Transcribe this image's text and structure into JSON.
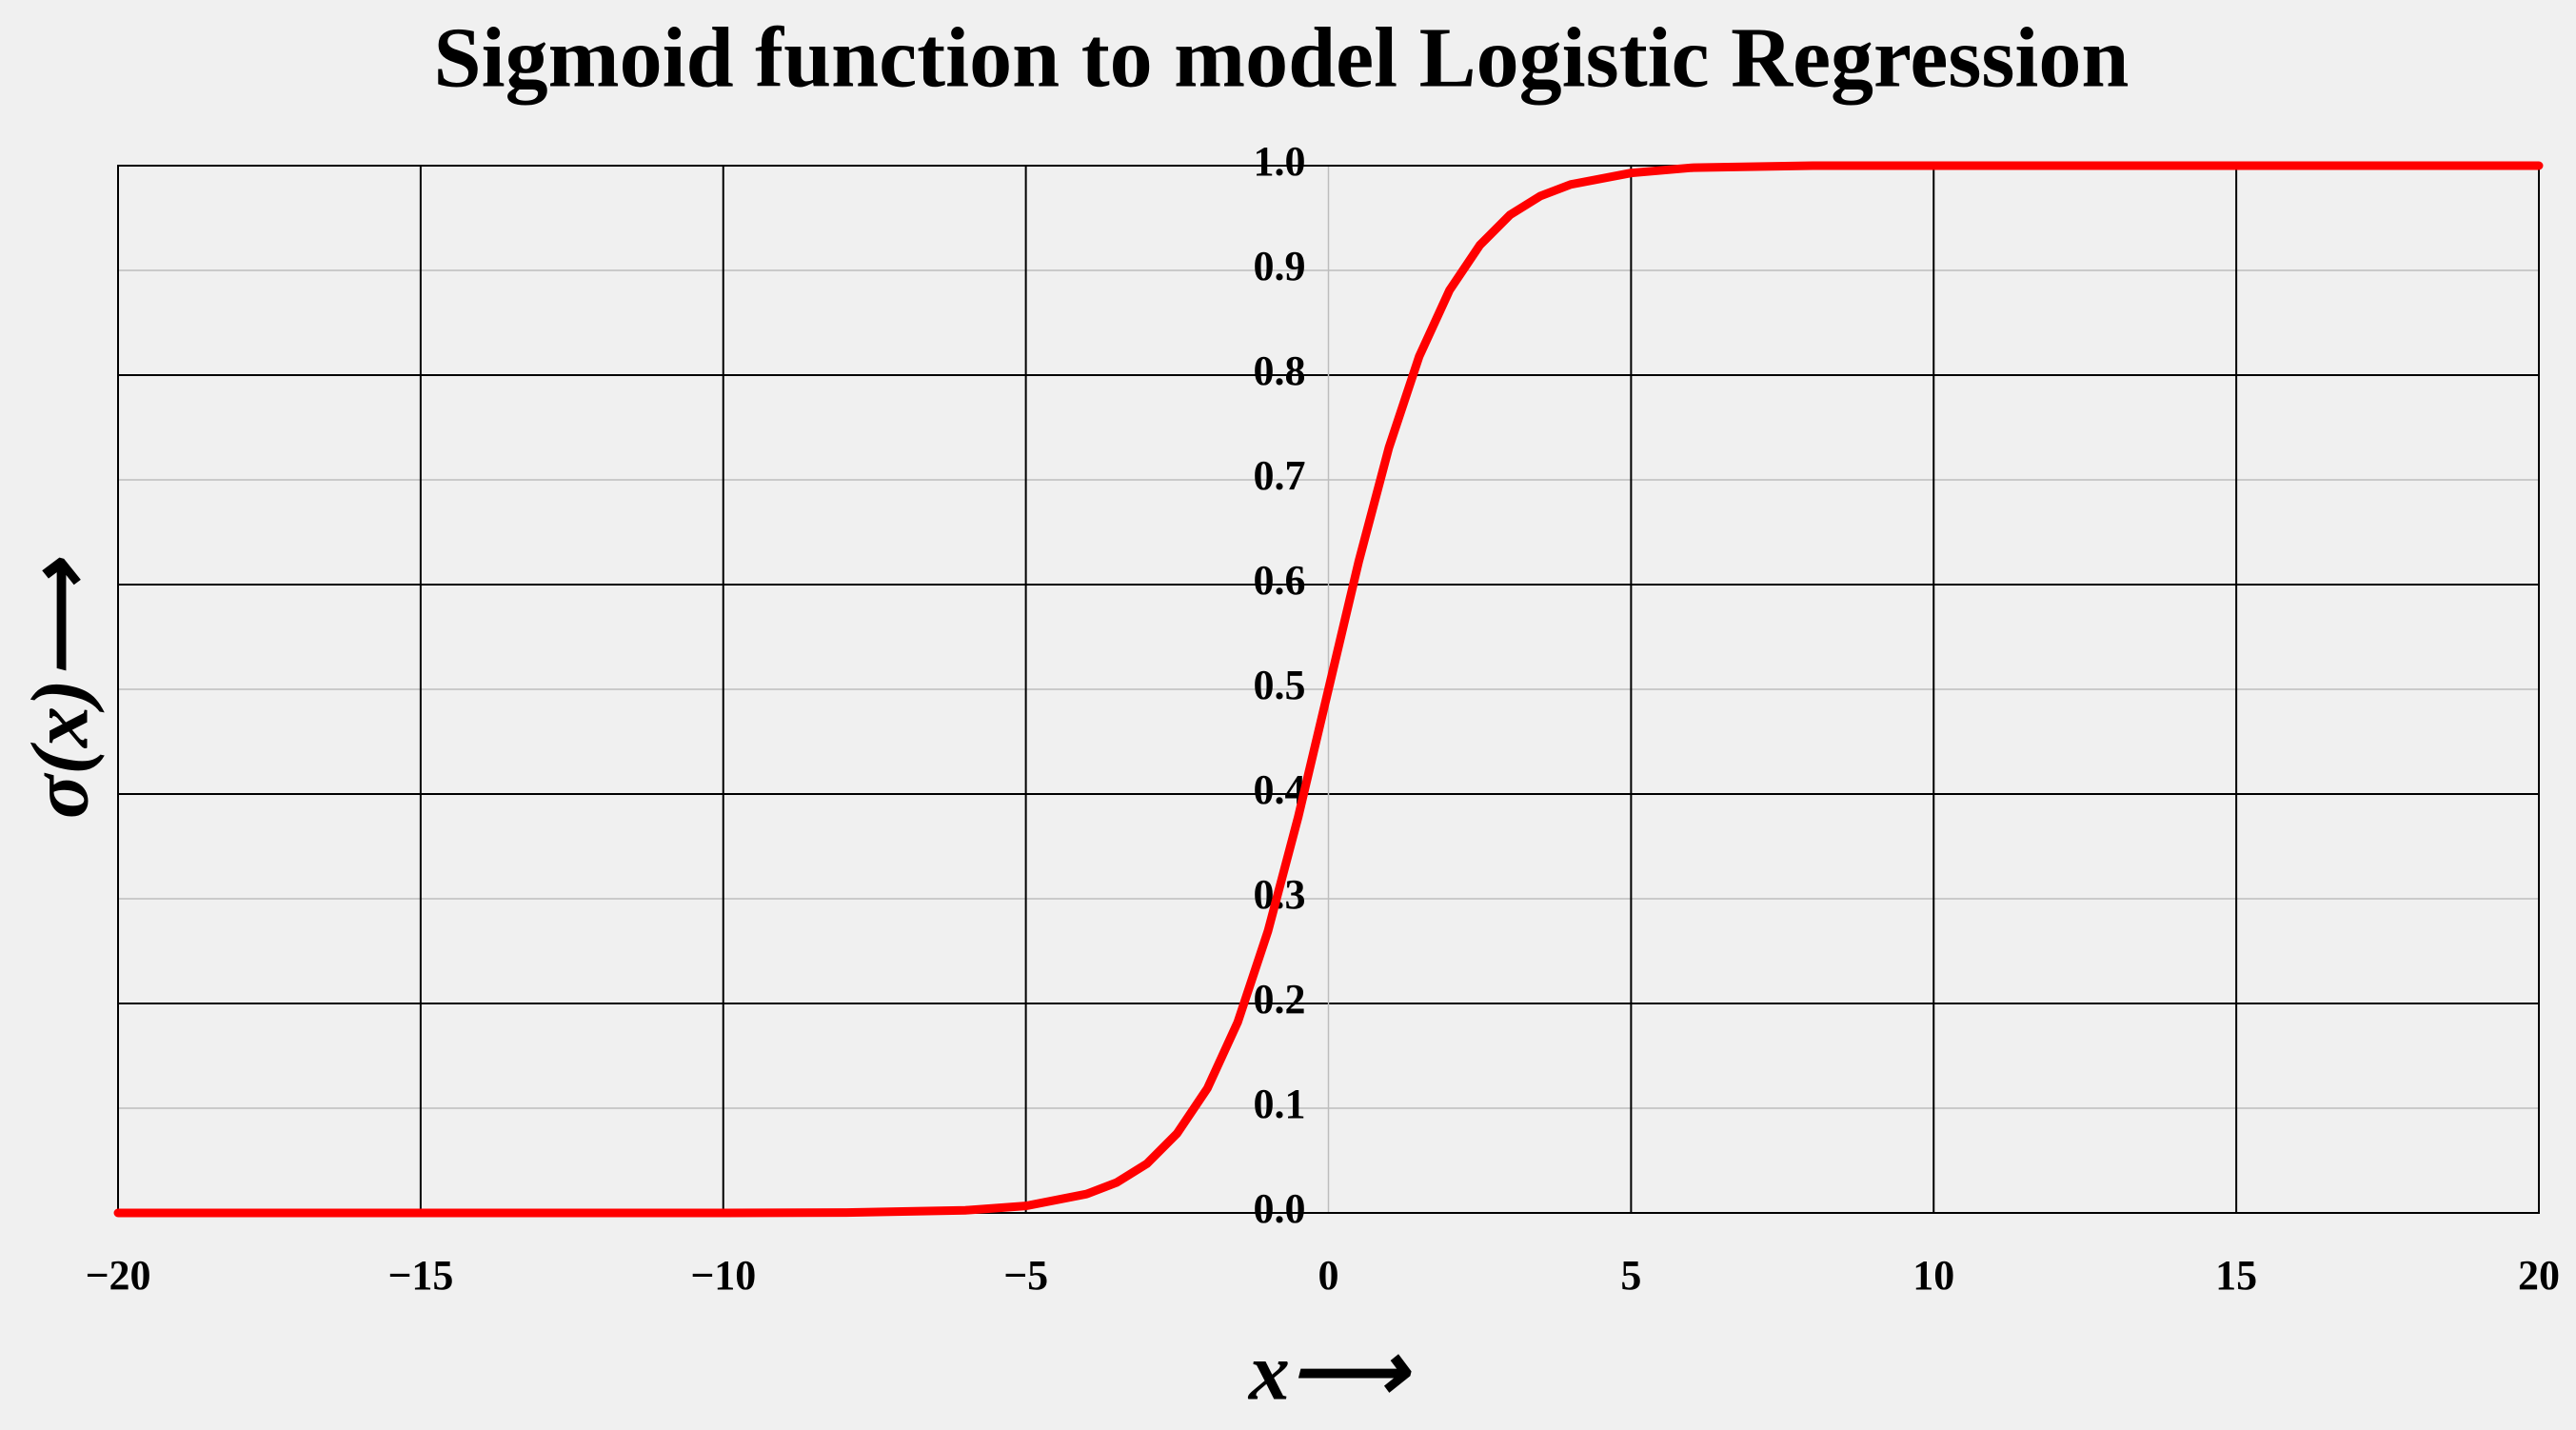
{
  "chart_data": {
    "type": "line",
    "title": "Sigmoid function to model Logistic Regression",
    "x_label": "x⟶",
    "y_label": "σ(x)⟶",
    "x": [
      -20,
      -15,
      -10,
      -8,
      -6,
      -5,
      -4,
      -3.5,
      -3,
      -2.5,
      -2,
      -1.5,
      -1,
      -0.5,
      0,
      0.5,
      1,
      1.5,
      2,
      2.5,
      3,
      3.5,
      4,
      5,
      6,
      8,
      10,
      15,
      20
    ],
    "series": [
      {
        "name": "σ(x)",
        "color": "#ff0000",
        "values": [
          0,
          0,
          0,
          0.0003,
          0.0025,
          0.0067,
          0.018,
          0.029,
          0.047,
          0.076,
          0.119,
          0.182,
          0.269,
          0.378,
          0.5,
          0.622,
          0.731,
          0.818,
          0.881,
          0.924,
          0.953,
          0.971,
          0.982,
          0.993,
          0.998,
          1,
          1,
          1,
          1
        ]
      }
    ],
    "xlim": [
      -20,
      20
    ],
    "ylim": [
      0,
      1
    ],
    "xticks": [
      {
        "value": -20,
        "label": "−20"
      },
      {
        "value": -15,
        "label": "−15"
      },
      {
        "value": -10,
        "label": "−10"
      },
      {
        "value": -5,
        "label": "−5"
      },
      0,
      5,
      10,
      15,
      20
    ],
    "yticks": [
      {
        "value": 0,
        "label": "0.0"
      },
      0.1,
      0.2,
      0.3,
      0.4,
      0.5,
      0.6,
      0.7,
      0.8,
      0.9,
      {
        "value": 1,
        "label": "1.0"
      }
    ],
    "grid": true
  }
}
